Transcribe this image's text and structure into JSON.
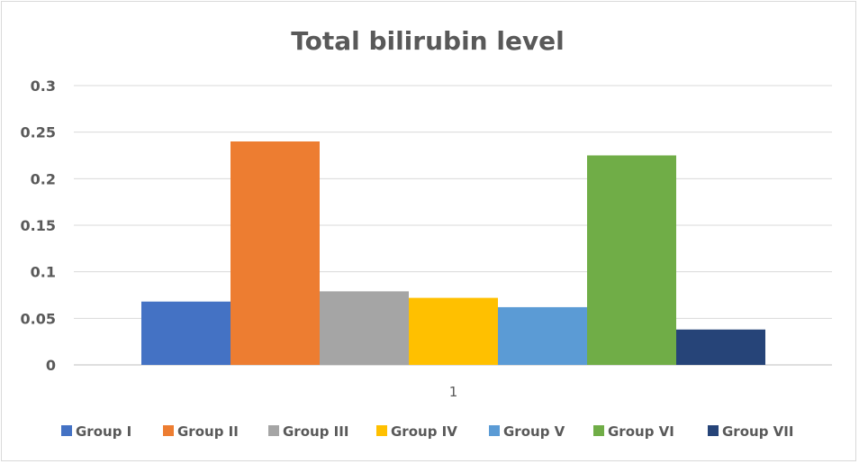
{
  "chart_data": {
    "type": "bar",
    "title": "Total bilirubin level",
    "xlabel": "",
    "ylabel": "",
    "categories": [
      "1"
    ],
    "ylim": [
      0,
      0.3
    ],
    "yticks": [
      "0",
      "0.05",
      "0.1",
      "0.15",
      "0.2",
      "0.25",
      "0.3"
    ],
    "grid": true,
    "legend_position": "bottom",
    "series": [
      {
        "name": "Group I",
        "values": [
          0.068
        ],
        "color": "#4472C4"
      },
      {
        "name": "Group II",
        "values": [
          0.24
        ],
        "color": "#ED7D31"
      },
      {
        "name": "Group III",
        "values": [
          0.079
        ],
        "color": "#A5A5A5"
      },
      {
        "name": "Group IV",
        "values": [
          0.072
        ],
        "color": "#FFC000"
      },
      {
        "name": "Group V",
        "values": [
          0.062
        ],
        "color": "#5B9BD5"
      },
      {
        "name": "Group VI",
        "values": [
          0.225
        ],
        "color": "#70AD47"
      },
      {
        "name": "Group VII",
        "values": [
          0.038
        ],
        "color": "#264478"
      }
    ]
  }
}
